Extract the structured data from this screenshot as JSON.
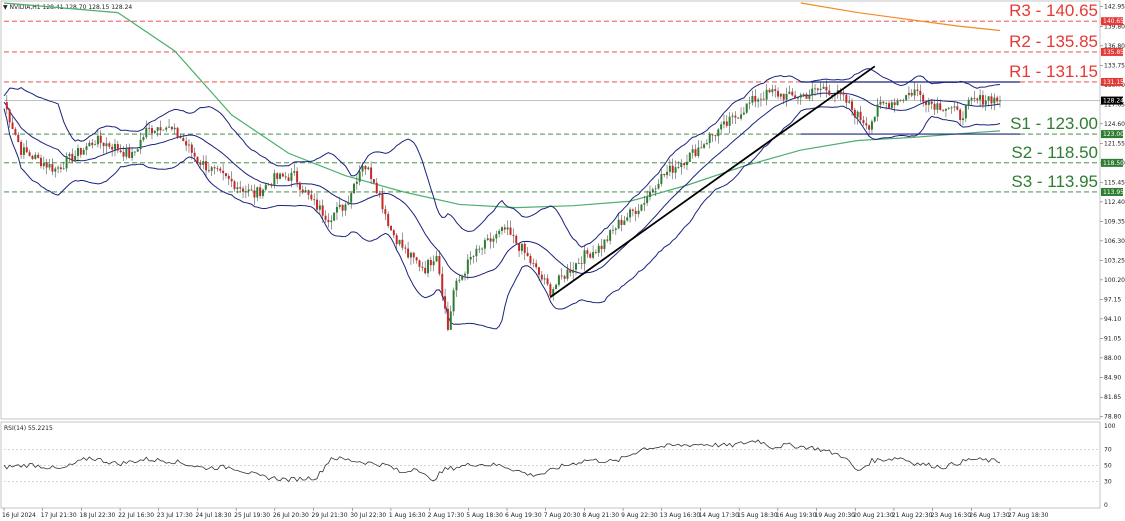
{
  "header": {
    "title": "▼ NVIDIA,H1  128.41 128.70 128.15 128.24"
  },
  "rsi": {
    "label": "RSI(14) 55.2215",
    "ylim": [
      0,
      100
    ],
    "levels": [
      70,
      50,
      30
    ],
    "ticks": [
      "100",
      "70",
      "50",
      "30",
      "0"
    ]
  },
  "colors": {
    "up": "#2e7d32",
    "down": "#c62828",
    "bands": "#1a237e",
    "sma_slow": "#4caf6e",
    "sma_long": "#f28c28",
    "resistance": "#e53935",
    "support": "#2e7d32",
    "box": "#1a237e",
    "trendline": "#000000",
    "rsi_line": "#333333"
  },
  "chart_data": {
    "type": "candlestick",
    "title": "NVIDIA,H1",
    "ylim": [
      78.6,
      143.5
    ],
    "y_ticks": [
      "142.95",
      "139.80",
      "136.80",
      "133.75",
      "130.70",
      "127.65",
      "124.60",
      "121.55",
      "118.50",
      "115.45",
      "112.40",
      "109.35",
      "106.30",
      "103.25",
      "100.20",
      "97.15",
      "94.10",
      "91.05",
      "88.00",
      "84.90",
      "81.85",
      "78.80"
    ],
    "x_ticks": [
      "16 Jul 2024",
      "17 Jul 21:30",
      "18 Jul 22:30",
      "22 Jul 16:30",
      "23 Jul 17:30",
      "24 Jul 18:30",
      "25 Jul 19:30",
      "26 Jul 20:30",
      "29 Jul 21:30",
      "30 Jul 22:30",
      "1 Aug 16:30",
      "2 Aug 17:30",
      "5 Aug 18:30",
      "6 Aug 19:30",
      "7 Aug 20:30",
      "8 Aug 21:30",
      "9 Aug 22:30",
      "13 Aug 16:30",
      "14 Aug 17:30",
      "15 Aug 18:30",
      "16 Aug 19:30",
      "19 Aug 20:30",
      "20 Aug 21:30",
      "21 Aug 22:30",
      "23 Aug 16:30",
      "26 Aug 17:30",
      "27 Aug 18:30"
    ],
    "levels": [
      {
        "label": "R3 - 140.65",
        "value": 140.65,
        "tag": "140.65",
        "kind": "resistance"
      },
      {
        "label": "R2 - 135.85",
        "value": 135.85,
        "tag": "135.85",
        "kind": "resistance"
      },
      {
        "label": "R1 - 131.15",
        "value": 131.15,
        "tag": "131.15",
        "kind": "resistance"
      },
      {
        "label": "S1 - 123.00",
        "value": 123.0,
        "tag": "123.00",
        "kind": "support"
      },
      {
        "label": "S2 - 118.50",
        "value": 118.5,
        "tag": "118.50",
        "kind": "support"
      },
      {
        "label": "S3 - 113.95",
        "value": 113.95,
        "tag": "113.95",
        "kind": "support"
      }
    ],
    "current_price": {
      "value": 128.24,
      "tag": "128.24"
    },
    "range_box": {
      "top": 131.15,
      "bottom": 123.0
    },
    "trendline": {
      "from": 97.5,
      "to": 133.6
    },
    "price_path": [
      [
        0,
        128
      ],
      [
        6,
        120.5
      ],
      [
        12,
        119.0
      ],
      [
        18,
        117.5
      ],
      [
        26,
        120.0
      ],
      [
        32,
        122.0
      ],
      [
        38,
        121.2
      ],
      [
        45,
        119.5
      ],
      [
        50,
        123.5
      ],
      [
        56,
        124.5
      ],
      [
        62,
        122.5
      ],
      [
        68,
        119.0
      ],
      [
        74,
        117.0
      ],
      [
        82,
        115.0
      ],
      [
        88,
        113.5
      ],
      [
        95,
        116.0
      ],
      [
        102,
        116.5
      ],
      [
        108,
        112.5
      ],
      [
        114,
        110.0
      ],
      [
        120,
        112.0
      ],
      [
        126,
        118.5
      ],
      [
        130,
        116.0
      ],
      [
        136,
        108.0
      ],
      [
        142,
        104.0
      ],
      [
        148,
        102.0
      ],
      [
        152,
        104.5
      ],
      [
        156,
        92.5
      ],
      [
        158,
        98.5
      ],
      [
        164,
        103.5
      ],
      [
        170,
        106.0
      ],
      [
        176,
        108.0
      ],
      [
        182,
        105.0
      ],
      [
        188,
        101.0
      ],
      [
        192,
        98.5
      ],
      [
        198,
        101.5
      ],
      [
        204,
        104.0
      ],
      [
        210,
        105.5
      ],
      [
        216,
        109.0
      ],
      [
        220,
        110.5
      ],
      [
        224,
        112.0
      ],
      [
        230,
        116.0
      ],
      [
        236,
        118.0
      ],
      [
        242,
        120.0
      ],
      [
        248,
        122.5
      ],
      [
        254,
        124.5
      ],
      [
        260,
        127.0
      ],
      [
        264,
        128.5
      ],
      [
        270,
        129.5
      ],
      [
        276,
        128.8
      ],
      [
        282,
        129.2
      ],
      [
        288,
        130.2
      ],
      [
        292,
        129.5
      ],
      [
        296,
        128.0
      ],
      [
        300,
        125.8
      ],
      [
        304,
        124.5
      ],
      [
        308,
        127.5
      ],
      [
        314,
        128.3
      ],
      [
        320,
        129.8
      ],
      [
        326,
        127.8
      ],
      [
        332,
        127.2
      ],
      [
        336,
        125.8
      ],
      [
        340,
        128.0
      ],
      [
        346,
        128.7
      ],
      [
        350,
        128.24
      ]
    ],
    "candle_count": 351,
    "sma_slow": [
      [
        0,
        143.5
      ],
      [
        40,
        142
      ],
      [
        60,
        136
      ],
      [
        80,
        126
      ],
      [
        100,
        120
      ],
      [
        120,
        116.5
      ],
      [
        140,
        114.0
      ],
      [
        160,
        112.0
      ],
      [
        180,
        111.5
      ],
      [
        200,
        111.8
      ],
      [
        220,
        112.5
      ],
      [
        240,
        115.0
      ],
      [
        260,
        118.0
      ],
      [
        280,
        120.5
      ],
      [
        300,
        122.0
      ],
      [
        320,
        122.5
      ],
      [
        340,
        123.2
      ],
      [
        350,
        123.5
      ]
    ],
    "sma_long": [
      [
        280,
        143.5
      ],
      [
        300,
        142.0
      ],
      [
        320,
        140.8
      ],
      [
        335,
        139.9
      ],
      [
        350,
        139.2
      ]
    ],
    "rsi_series": [
      [
        0,
        48
      ],
      [
        10,
        51
      ],
      [
        20,
        45
      ],
      [
        30,
        60
      ],
      [
        40,
        52
      ],
      [
        50,
        58
      ],
      [
        60,
        55
      ],
      [
        70,
        47
      ],
      [
        80,
        48
      ],
      [
        90,
        36
      ],
      [
        100,
        32
      ],
      [
        110,
        35
      ],
      [
        115,
        60
      ],
      [
        125,
        55
      ],
      [
        135,
        50
      ],
      [
        140,
        40
      ],
      [
        145,
        48
      ],
      [
        150,
        30
      ],
      [
        155,
        45
      ],
      [
        165,
        52
      ],
      [
        175,
        50
      ],
      [
        185,
        38
      ],
      [
        190,
        40
      ],
      [
        195,
        48
      ],
      [
        205,
        57
      ],
      [
        215,
        55
      ],
      [
        225,
        72
      ],
      [
        235,
        75
      ],
      [
        245,
        77
      ],
      [
        255,
        75
      ],
      [
        265,
        82
      ],
      [
        270,
        73
      ],
      [
        275,
        76
      ],
      [
        285,
        72
      ],
      [
        295,
        62
      ],
      [
        300,
        42
      ],
      [
        305,
        56
      ],
      [
        315,
        60
      ],
      [
        320,
        53
      ],
      [
        330,
        48
      ],
      [
        340,
        58
      ],
      [
        350,
        55
      ]
    ]
  }
}
